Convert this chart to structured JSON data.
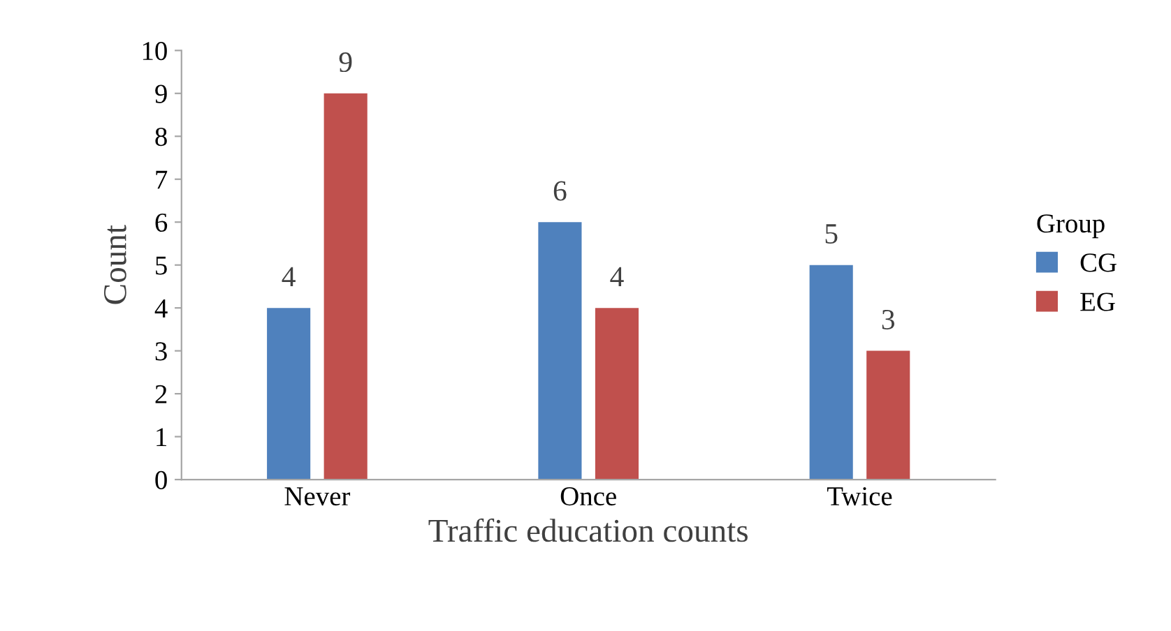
{
  "chart_data": {
    "type": "bar",
    "xlabel": "Traffic education counts",
    "ylabel": "Count",
    "legend_title": "Group",
    "categories": [
      "Never",
      "Once",
      "Twice"
    ],
    "series": [
      {
        "name": "CG",
        "color": "#4f81bd",
        "values": [
          4,
          6,
          5
        ]
      },
      {
        "name": "EG",
        "color": "#c0504d",
        "values": [
          9,
          4,
          3
        ]
      }
    ],
    "ylim": [
      0,
      10
    ],
    "yticks": [
      0,
      1,
      2,
      3,
      4,
      5,
      6,
      7,
      8,
      9,
      10
    ],
    "data_labels": true,
    "legend": "right",
    "grid": false
  }
}
